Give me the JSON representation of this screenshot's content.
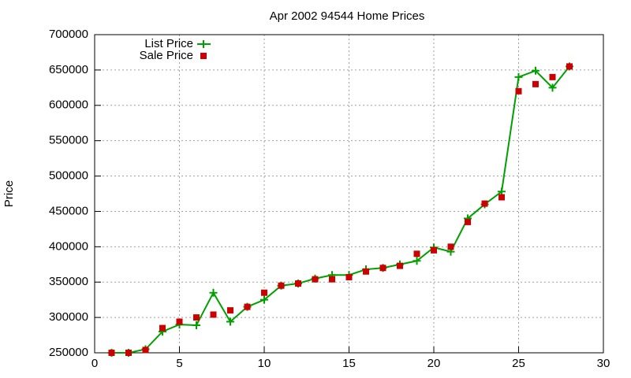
{
  "chart_data": {
    "type": "line",
    "title": "Apr 2002 94544 Home Prices",
    "y_label": "Price",
    "x": [
      1,
      2,
      3,
      4,
      5,
      6,
      7,
      8,
      9,
      10,
      11,
      12,
      13,
      14,
      15,
      16,
      17,
      18,
      19,
      20,
      21,
      22,
      23,
      24,
      25,
      26,
      27,
      28
    ],
    "series": [
      {
        "name": "List Price",
        "color": "#00a000",
        "line": true,
        "marker": "plus",
        "values": [
          250000,
          250000,
          255000,
          280000,
          290000,
          289000,
          335000,
          294000,
          315000,
          325000,
          345000,
          348000,
          355000,
          360000,
          360000,
          368000,
          370000,
          375000,
          380000,
          399000,
          393000,
          440000,
          460000,
          478000,
          640000,
          649000,
          625000,
          655000
        ]
      },
      {
        "name": "Sale Price",
        "color": "#cc0000",
        "line": false,
        "marker": "square",
        "values": [
          250000,
          250000,
          254000,
          285000,
          294000,
          300000,
          304000,
          310000,
          315000,
          335000,
          345000,
          348000,
          354000,
          354000,
          357000,
          365000,
          370000,
          373000,
          390000,
          395000,
          400000,
          435000,
          461000,
          470000,
          620000,
          630000,
          640000,
          655000
        ]
      }
    ],
    "xlim": [
      0,
      30
    ],
    "xticks": [
      0,
      5,
      10,
      15,
      20,
      25,
      30
    ],
    "ylim": [
      250000,
      700000
    ],
    "yticks": [
      250000,
      300000,
      350000,
      400000,
      450000,
      500000,
      550000,
      600000,
      650000,
      700000
    ],
    "grid": true,
    "legend": "top-left"
  }
}
